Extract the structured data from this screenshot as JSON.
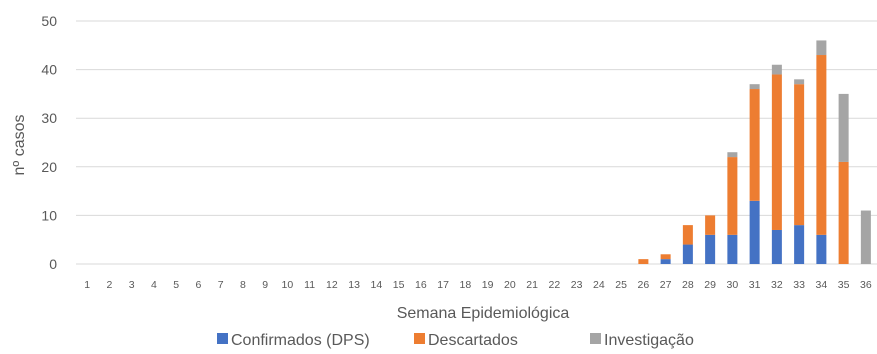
{
  "chart_data": {
    "type": "bar",
    "stacked": true,
    "title": "",
    "xlabel": "Semana Epidemiológica",
    "ylabel": "nº casos",
    "ylim": [
      0,
      50
    ],
    "yticks": [
      0,
      10,
      20,
      30,
      40,
      50
    ],
    "grid": true,
    "legend_position": "bottom",
    "categories": [
      "1",
      "2",
      "3",
      "4",
      "5",
      "6",
      "7",
      "8",
      "9",
      "10",
      "11",
      "12",
      "13",
      "14",
      "15",
      "16",
      "17",
      "18",
      "19",
      "20",
      "21",
      "22",
      "23",
      "24",
      "25",
      "26",
      "27",
      "28",
      "29",
      "30",
      "31",
      "32",
      "33",
      "34",
      "35",
      "36"
    ],
    "series": [
      {
        "name": "Confirmados (DPS)",
        "color": "#4472C4",
        "values": [
          0,
          0,
          0,
          0,
          0,
          0,
          0,
          0,
          0,
          0,
          0,
          0,
          0,
          0,
          0,
          0,
          0,
          0,
          0,
          0,
          0,
          0,
          0,
          0,
          0,
          0,
          1,
          4,
          6,
          6,
          13,
          7,
          8,
          6,
          0,
          0
        ]
      },
      {
        "name": "Descartados",
        "color": "#ED7D31",
        "values": [
          0,
          0,
          0,
          0,
          0,
          0,
          0,
          0,
          0,
          0,
          0,
          0,
          0,
          0,
          0,
          0,
          0,
          0,
          0,
          0,
          0,
          0,
          0,
          0,
          0,
          1,
          1,
          4,
          4,
          16,
          23,
          32,
          29,
          37,
          21,
          0
        ]
      },
      {
        "name": "Investigação",
        "color": "#A5A5A5",
        "values": [
          0,
          0,
          0,
          0,
          0,
          0,
          0,
          0,
          0,
          0,
          0,
          0,
          0,
          0,
          0,
          0,
          0,
          0,
          0,
          0,
          0,
          0,
          0,
          0,
          0,
          0,
          0,
          0,
          0,
          1,
          1,
          2,
          1,
          3,
          14,
          11
        ]
      }
    ]
  }
}
